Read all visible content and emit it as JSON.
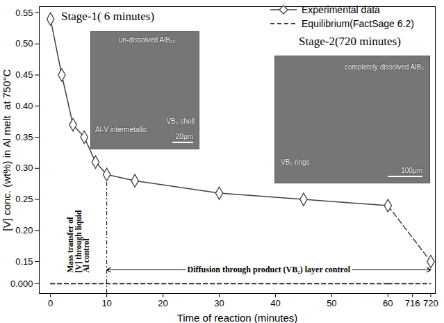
{
  "chart_data": {
    "type": "line",
    "x": [
      0,
      2,
      4,
      6,
      8,
      10,
      15,
      30,
      45,
      60,
      720
    ],
    "series": [
      {
        "name": "Experimental data",
        "color": "#404040",
        "marker": "diamond",
        "line_style": "solid",
        "values": [
          0.54,
          0.45,
          0.37,
          0.35,
          0.31,
          0.29,
          0.28,
          0.26,
          0.25,
          0.24,
          0.15
        ]
      },
      {
        "name": "Equilibrium(FactSage 6.2)",
        "color": "#000000",
        "line_style": "dashed",
        "values": [
          0,
          0,
          0,
          0,
          0,
          0,
          0,
          0,
          0,
          0,
          0
        ]
      }
    ],
    "xlim": [
      -2,
      721
    ],
    "x_break": [
      62,
      714
    ],
    "xticks": [
      0,
      10,
      20,
      30,
      40,
      50,
      60,
      716,
      720
    ],
    "ylim": [
      -0.012,
      0.56
    ],
    "y_break": [
      0.005,
      0.13
    ],
    "yticks": [
      {
        "value": 0,
        "label": "0.000"
      },
      0.15,
      {
        "value": 0.2,
        "label": "0.20"
      },
      0.25,
      {
        "value": 0.3,
        "label": "0.30"
      },
      0.35,
      {
        "value": 0.4,
        "label": "0.40"
      },
      0.45,
      {
        "value": 0.5,
        "label": "0.50"
      },
      0.55
    ],
    "xlabel": "Time of reaction (minutes)",
    "ylabel": "[V] conc. (wt%) in Al melt  at 750°C",
    "legend": "top-right",
    "grid": false,
    "regions": [
      {
        "label": "Mass transfer of [V] through liquid Al control",
        "from": 0,
        "to": 10
      },
      {
        "label": "Diffusion through product (VB₂) layer control",
        "from": 10,
        "to": 720
      }
    ],
    "insets": [
      {
        "title": "Stage-1( 6 minutes)",
        "labels": [
          "un-dissolved AlB₁₂",
          "VB₂ shell",
          "Al-V intermetallic"
        ],
        "scale_bar": "20μm"
      },
      {
        "title": "Stage-2(720 minutes)",
        "labels": [
          "completely dissolved AlB₂",
          "VB₂ rings"
        ],
        "scale_bar": "100μm"
      }
    ]
  }
}
